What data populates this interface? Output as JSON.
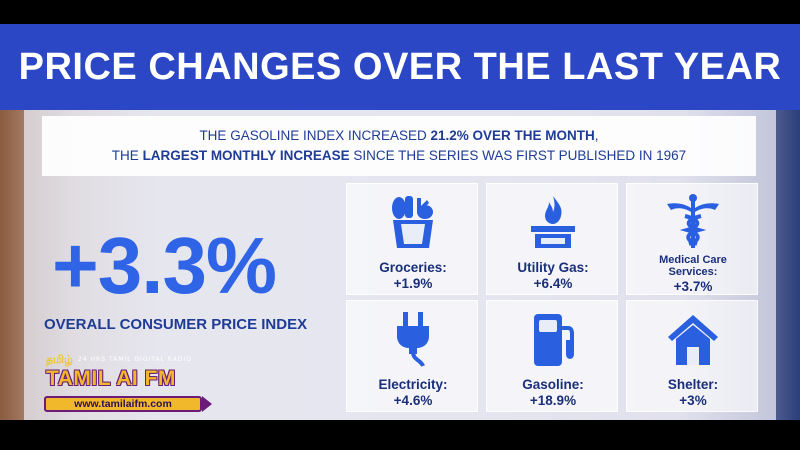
{
  "title": "PRICE CHANGES OVER THE LAST YEAR",
  "headline": {
    "line1_pre": "THE GASOLINE INDEX INCREASED ",
    "line1_bold": "21.2% OVER THE MONTH",
    "line1_post": ",",
    "line2_pre": "THE ",
    "line2_bold": "LARGEST MONTHLY INCREASE",
    "line2_post": " SINCE THE SERIES WAS FIRST PUBLISHED IN 1967"
  },
  "overall": {
    "value": "+3.3%",
    "label": "OVERALL CONSUMER PRICE INDEX"
  },
  "categories": [
    {
      "label": "Groceries:",
      "value": "+1.9%",
      "icon": "groceries-basket-icon"
    },
    {
      "label": "Utility Gas:",
      "value": "+6.4%",
      "icon": "gas-stove-flame-icon"
    },
    {
      "label_line1": "Medical Care",
      "label_line2": "Services:",
      "value": "+3.7%",
      "icon": "caduceus-icon"
    },
    {
      "label": "Electricity:",
      "value": "+4.6%",
      "icon": "electric-plug-icon"
    },
    {
      "label": "Gasoline:",
      "value": "+18.9%",
      "icon": "fuel-pump-icon"
    },
    {
      "label": "Shelter:",
      "value": "+3%",
      "icon": "house-icon"
    }
  ],
  "watermark": {
    "script": "தமிழ்",
    "tagline": "24 HRS TAMIL DIGITAL RADIO",
    "name": "TAMIL AI FM",
    "url": "www.tamilaifm.com"
  },
  "colors": {
    "title_band": "#2b47c6",
    "accent_blue": "#2f64e6",
    "text_navy": "#1f3c95"
  }
}
